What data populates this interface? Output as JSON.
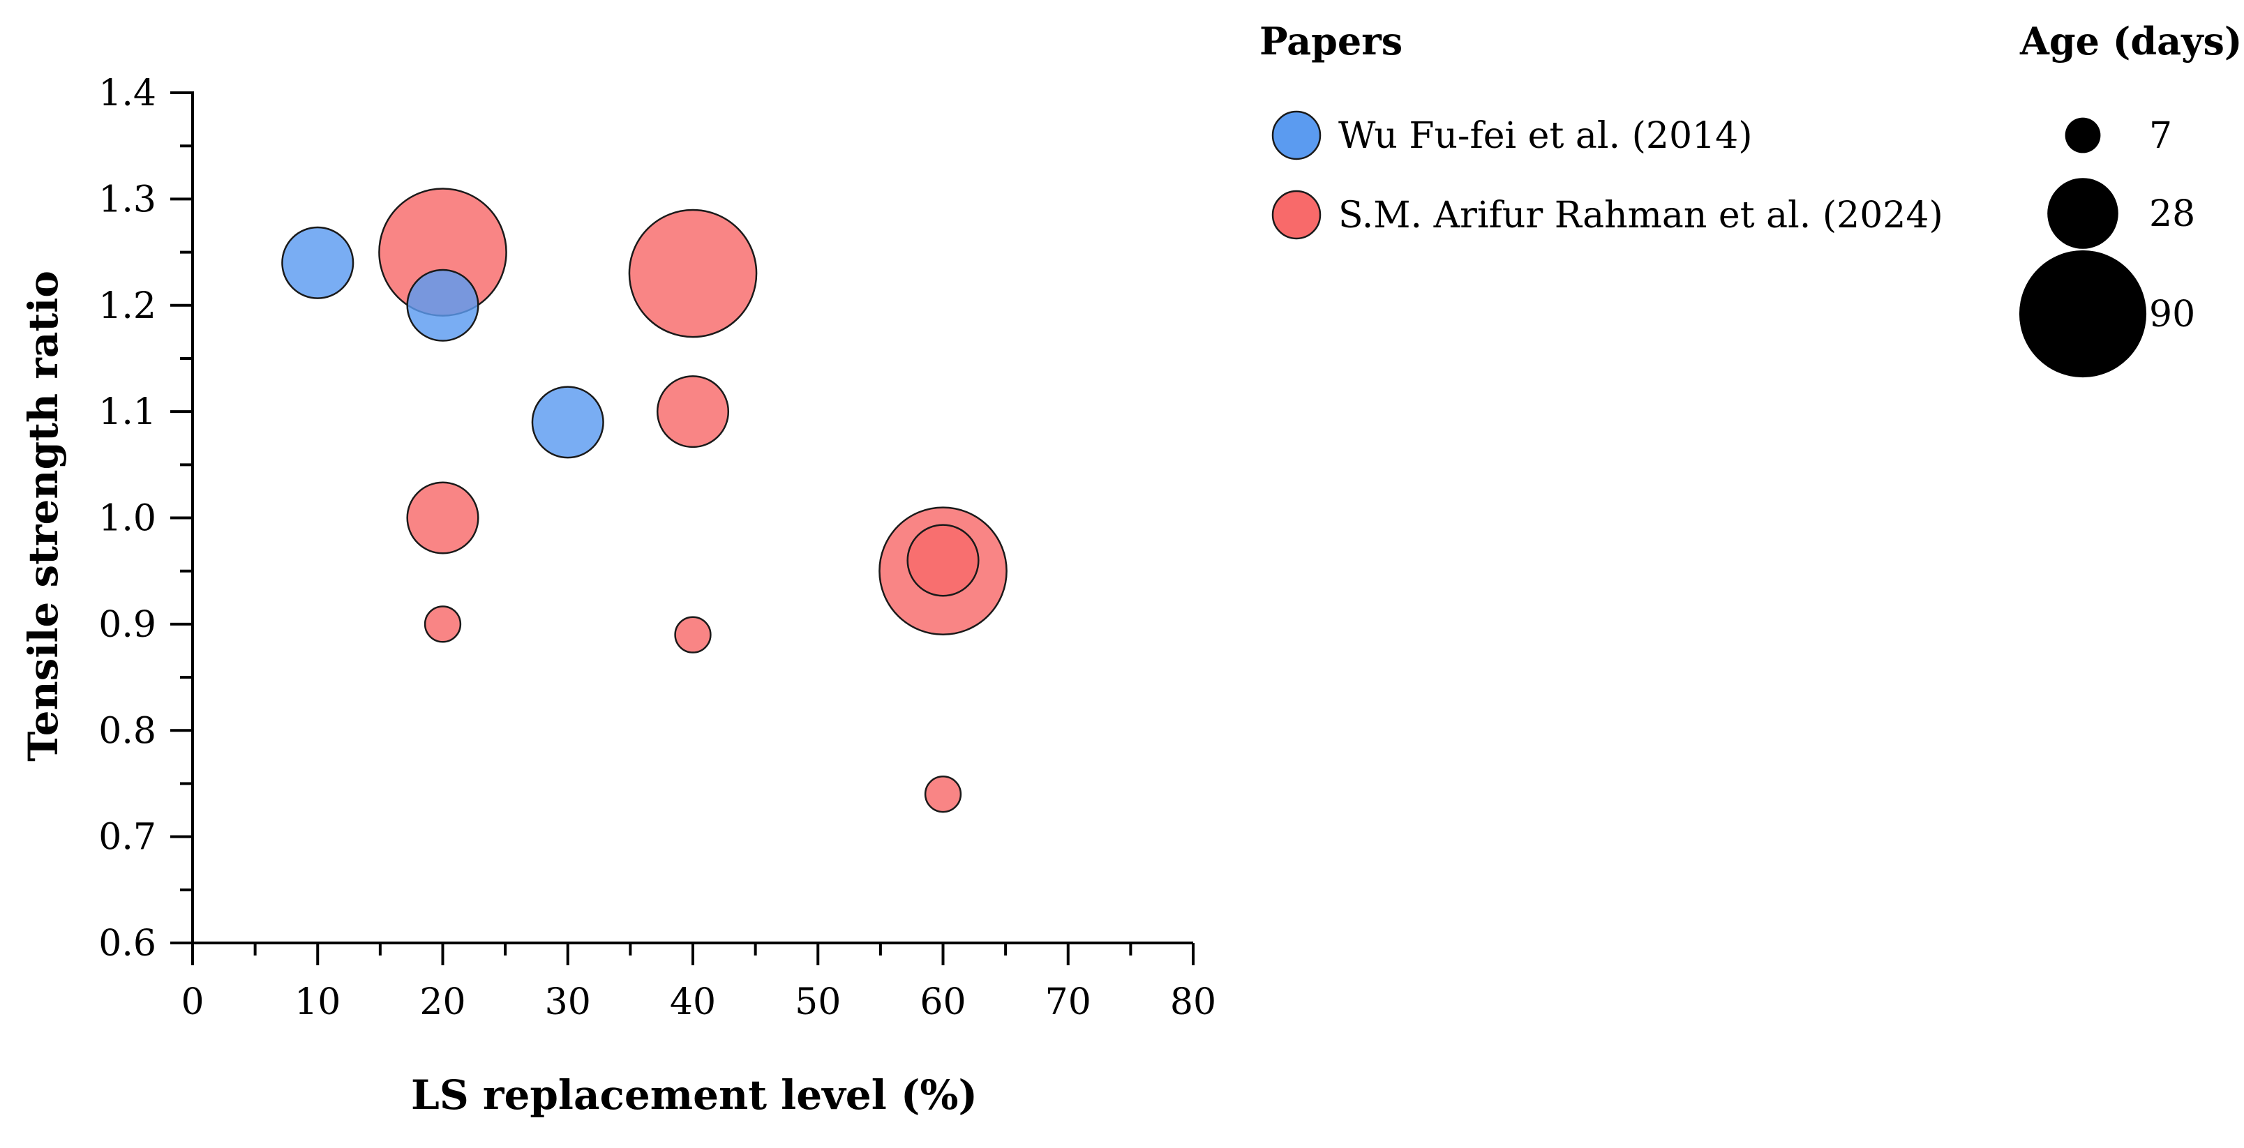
{
  "chart_data": {
    "type": "scatter",
    "variant": "bubble",
    "title": "",
    "xlabel": "LS replacement level (%)",
    "ylabel": "Tensile strength ratio",
    "xlim": [
      0,
      80
    ],
    "ylim": [
      0.6,
      1.4
    ],
    "x_ticks": [
      "0",
      "10",
      "20",
      "30",
      "40",
      "50",
      "60",
      "70",
      "80"
    ],
    "y_ticks": [
      "0.6",
      "0.7",
      "0.8",
      "0.9",
      "1.0",
      "1.1",
      "1.2",
      "1.3",
      "1.4"
    ],
    "grid": false,
    "legend_position": "right",
    "size_variable": "Age (days)",
    "series": [
      {
        "name": "Wu Fu-fei et al. (2014)",
        "color": "#5b9bf0",
        "points": [
          {
            "x": 10,
            "y": 1.24,
            "age": 28
          },
          {
            "x": 20,
            "y": 1.2,
            "age": 28
          },
          {
            "x": 30,
            "y": 1.09,
            "age": 28
          }
        ]
      },
      {
        "name": "S.M. Arifur Rahman et al. (2024)",
        "color": "#f86a6a",
        "points": [
          {
            "x": 20,
            "y": 0.9,
            "age": 7
          },
          {
            "x": 20,
            "y": 1.0,
            "age": 28
          },
          {
            "x": 20,
            "y": 1.25,
            "age": 90
          },
          {
            "x": 40,
            "y": 0.89,
            "age": 7
          },
          {
            "x": 40,
            "y": 1.1,
            "age": 28
          },
          {
            "x": 40,
            "y": 1.23,
            "age": 90
          },
          {
            "x": 60,
            "y": 0.74,
            "age": 7
          },
          {
            "x": 60,
            "y": 0.96,
            "age": 28
          },
          {
            "x": 60,
            "y": 0.95,
            "age": 90
          }
        ]
      }
    ]
  },
  "legend": {
    "papers_title": "Papers",
    "age_title": "Age (days)",
    "sizes": [
      {
        "label": "7",
        "value": 7
      },
      {
        "label": "28",
        "value": 28
      },
      {
        "label": "90",
        "value": 90
      }
    ]
  }
}
